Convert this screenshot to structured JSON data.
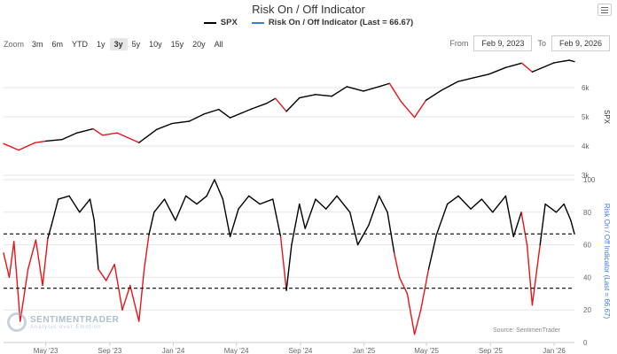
{
  "header": {
    "title": "Risk On / Off Indicator",
    "menu_icon": "hamburger-icon"
  },
  "legend": [
    {
      "label": "SPX",
      "color": "#000000"
    },
    {
      "label": "Risk On / Off Indicator (Last = 66.67)",
      "color": "#3b7ddd"
    }
  ],
  "zoom": {
    "label": "Zoom",
    "buttons": [
      "3m",
      "6m",
      "YTD",
      "1y",
      "3y",
      "5y",
      "10y",
      "15y",
      "20y",
      "All"
    ],
    "active": "3y"
  },
  "range": {
    "from_label": "From",
    "from_value": "Feb 9, 2023",
    "to_label": "To",
    "to_value": "Feb 9, 2026"
  },
  "watermark": {
    "name": "SENTIMENTRADER",
    "tagline": "Analysis over Emotion"
  },
  "source": "Source: SentimenTrader",
  "colors": {
    "price": "#000000",
    "risk_off": "#e8141b",
    "threshold": "#000000"
  },
  "chart_data": [
    {
      "type": "line",
      "title": "SPX",
      "ylabel": "SPX",
      "ylim": [
        3000,
        7000
      ],
      "yticks": [
        3000,
        4000,
        5000,
        6000
      ],
      "ytick_labels": [
        "3k",
        "4k",
        "5k",
        "6k"
      ],
      "xlim": [
        "2023-02-09",
        "2026-02-09"
      ],
      "xtick_labels": [
        "May '23",
        "Sep '23",
        "Jan '24",
        "May '24",
        "Sep '24",
        "Jan '25",
        "May '25",
        "Sep '25",
        "Jan '26"
      ],
      "xtick_dates": [
        "2023-05-01",
        "2023-09-01",
        "2024-01-01",
        "2024-05-01",
        "2024-09-01",
        "2025-01-01",
        "2025-05-01",
        "2025-09-01",
        "2026-01-01"
      ],
      "grid": true,
      "series": [
        {
          "name": "SPX",
          "points": [
            [
              "2023-02-09",
              4081,
              "off"
            ],
            [
              "2023-03-10",
              3861,
              "off"
            ],
            [
              "2023-04-10",
              4110,
              "off"
            ],
            [
              "2023-05-01",
              4170,
              "off"
            ],
            [
              "2023-06-01",
              4220,
              "on"
            ],
            [
              "2023-06-30",
              4450,
              "on"
            ],
            [
              "2023-07-31",
              4588,
              "on"
            ],
            [
              "2023-08-18",
              4370,
              "off"
            ],
            [
              "2023-09-15",
              4450,
              "off"
            ],
            [
              "2023-10-27",
              4117,
              "off"
            ],
            [
              "2023-11-30",
              4567,
              "on"
            ],
            [
              "2023-12-29",
              4770,
              "on"
            ],
            [
              "2024-01-31",
              4845,
              "on"
            ],
            [
              "2024-02-29",
              5096,
              "on"
            ],
            [
              "2024-03-28",
              5254,
              "on"
            ],
            [
              "2024-04-19",
              4967,
              "on"
            ],
            [
              "2024-05-31",
              5277,
              "on"
            ],
            [
              "2024-06-28",
              5460,
              "on"
            ],
            [
              "2024-07-15",
              5631,
              "on"
            ],
            [
              "2024-08-05",
              5186,
              "off"
            ],
            [
              "2024-08-30",
              5648,
              "on"
            ],
            [
              "2024-09-30",
              5762,
              "on"
            ],
            [
              "2024-10-31",
              5705,
              "on"
            ],
            [
              "2024-11-29",
              6032,
              "on"
            ],
            [
              "2024-12-31",
              5882,
              "on"
            ],
            [
              "2025-01-31",
              6040,
              "on"
            ],
            [
              "2025-02-19",
              6144,
              "on"
            ],
            [
              "2025-03-13",
              5521,
              "off"
            ],
            [
              "2025-04-08",
              4982,
              "off"
            ],
            [
              "2025-04-30",
              5569,
              "off"
            ],
            [
              "2025-05-30",
              5911,
              "on"
            ],
            [
              "2025-06-30",
              6205,
              "on"
            ],
            [
              "2025-07-31",
              6339,
              "on"
            ],
            [
              "2025-08-29",
              6460,
              "on"
            ],
            [
              "2025-09-30",
              6688,
              "on"
            ],
            [
              "2025-10-31",
              6840,
              "on"
            ],
            [
              "2025-11-20",
              6538,
              "off"
            ],
            [
              "2025-12-31",
              6845,
              "on"
            ],
            [
              "2026-01-30",
              6939,
              "on"
            ],
            [
              "2026-02-09",
              6890,
              "on"
            ]
          ]
        }
      ]
    },
    {
      "type": "line",
      "title": "Risk On / Off Indicator (Last = 66.67)",
      "ylabel": "Risk On / Off Indicator (Last = 66.67)",
      "ylim": [
        0,
        100
      ],
      "yticks": [
        0,
        20,
        40,
        60,
        80,
        100
      ],
      "ytick_labels": [
        "0",
        "20",
        "40",
        "60",
        "80",
        "100"
      ],
      "thresholds": [
        66.67,
        33.33
      ],
      "last": 66.67,
      "series": [
        {
          "name": "Risk On / Off Indicator",
          "points": [
            [
              "2023-02-09",
              55,
              "off"
            ],
            [
              "2023-02-20",
              40,
              "off"
            ],
            [
              "2023-03-01",
              62,
              "off"
            ],
            [
              "2023-03-13",
              13,
              "off"
            ],
            [
              "2023-03-28",
              45,
              "off"
            ],
            [
              "2023-04-12",
              63,
              "off"
            ],
            [
              "2023-04-25",
              35,
              "off"
            ],
            [
              "2023-05-05",
              64,
              "off"
            ],
            [
              "2023-05-12",
              72,
              "on"
            ],
            [
              "2023-05-25",
              88,
              "on"
            ],
            [
              "2023-06-15",
              90,
              "on"
            ],
            [
              "2023-07-05",
              80,
              "on"
            ],
            [
              "2023-07-25",
              88,
              "on"
            ],
            [
              "2023-08-02",
              75,
              "on"
            ],
            [
              "2023-08-10",
              45,
              "on"
            ],
            [
              "2023-08-25",
              38,
              "off"
            ],
            [
              "2023-09-10",
              48,
              "off"
            ],
            [
              "2023-09-25",
              20,
              "off"
            ],
            [
              "2023-10-10",
              35,
              "off"
            ],
            [
              "2023-10-27",
              13,
              "off"
            ],
            [
              "2023-11-06",
              45,
              "off"
            ],
            [
              "2023-11-15",
              66,
              "off"
            ],
            [
              "2023-11-25",
              80,
              "on"
            ],
            [
              "2023-12-15",
              88,
              "on"
            ],
            [
              "2024-01-05",
              75,
              "on"
            ],
            [
              "2024-01-25",
              90,
              "on"
            ],
            [
              "2024-02-15",
              85,
              "on"
            ],
            [
              "2024-03-05",
              90,
              "on"
            ],
            [
              "2024-03-20",
              100,
              "on"
            ],
            [
              "2024-04-05",
              88,
              "on"
            ],
            [
              "2024-04-19",
              65,
              "on"
            ],
            [
              "2024-05-05",
              82,
              "on"
            ],
            [
              "2024-05-25",
              90,
              "on"
            ],
            [
              "2024-06-15",
              85,
              "on"
            ],
            [
              "2024-07-10",
              88,
              "on"
            ],
            [
              "2024-07-25",
              65,
              "on"
            ],
            [
              "2024-08-05",
              32,
              "off"
            ],
            [
              "2024-08-15",
              60,
              "on"
            ],
            [
              "2024-08-30",
              85,
              "on"
            ],
            [
              "2024-09-10",
              70,
              "on"
            ],
            [
              "2024-09-30",
              88,
              "on"
            ],
            [
              "2024-10-20",
              82,
              "on"
            ],
            [
              "2024-11-10",
              90,
              "on"
            ],
            [
              "2024-12-05",
              80,
              "on"
            ],
            [
              "2024-12-20",
              60,
              "on"
            ],
            [
              "2025-01-10",
              72,
              "on"
            ],
            [
              "2025-01-30",
              90,
              "on"
            ],
            [
              "2025-02-15",
              80,
              "on"
            ],
            [
              "2025-02-28",
              55,
              "on"
            ],
            [
              "2025-03-10",
              40,
              "off"
            ],
            [
              "2025-03-25",
              30,
              "off"
            ],
            [
              "2025-04-08",
              5,
              "off"
            ],
            [
              "2025-04-20",
              20,
              "off"
            ],
            [
              "2025-05-05",
              45,
              "off"
            ],
            [
              "2025-05-20",
              66,
              "on"
            ],
            [
              "2025-06-10",
              85,
              "on"
            ],
            [
              "2025-07-01",
              90,
              "on"
            ],
            [
              "2025-07-25",
              82,
              "on"
            ],
            [
              "2025-08-15",
              88,
              "on"
            ],
            [
              "2025-09-05",
              80,
              "on"
            ],
            [
              "2025-09-30",
              90,
              "on"
            ],
            [
              "2025-10-15",
              65,
              "on"
            ],
            [
              "2025-10-30",
              80,
              "on"
            ],
            [
              "2025-11-10",
              60,
              "off"
            ],
            [
              "2025-11-20",
              23,
              "off"
            ],
            [
              "2025-12-05",
              60,
              "off"
            ],
            [
              "2025-12-15",
              85,
              "on"
            ],
            [
              "2026-01-05",
              80,
              "on"
            ],
            [
              "2026-01-20",
              85,
              "on"
            ],
            [
              "2026-02-02",
              75,
              "on"
            ],
            [
              "2026-02-09",
              66.67,
              "on"
            ]
          ]
        }
      ]
    }
  ]
}
